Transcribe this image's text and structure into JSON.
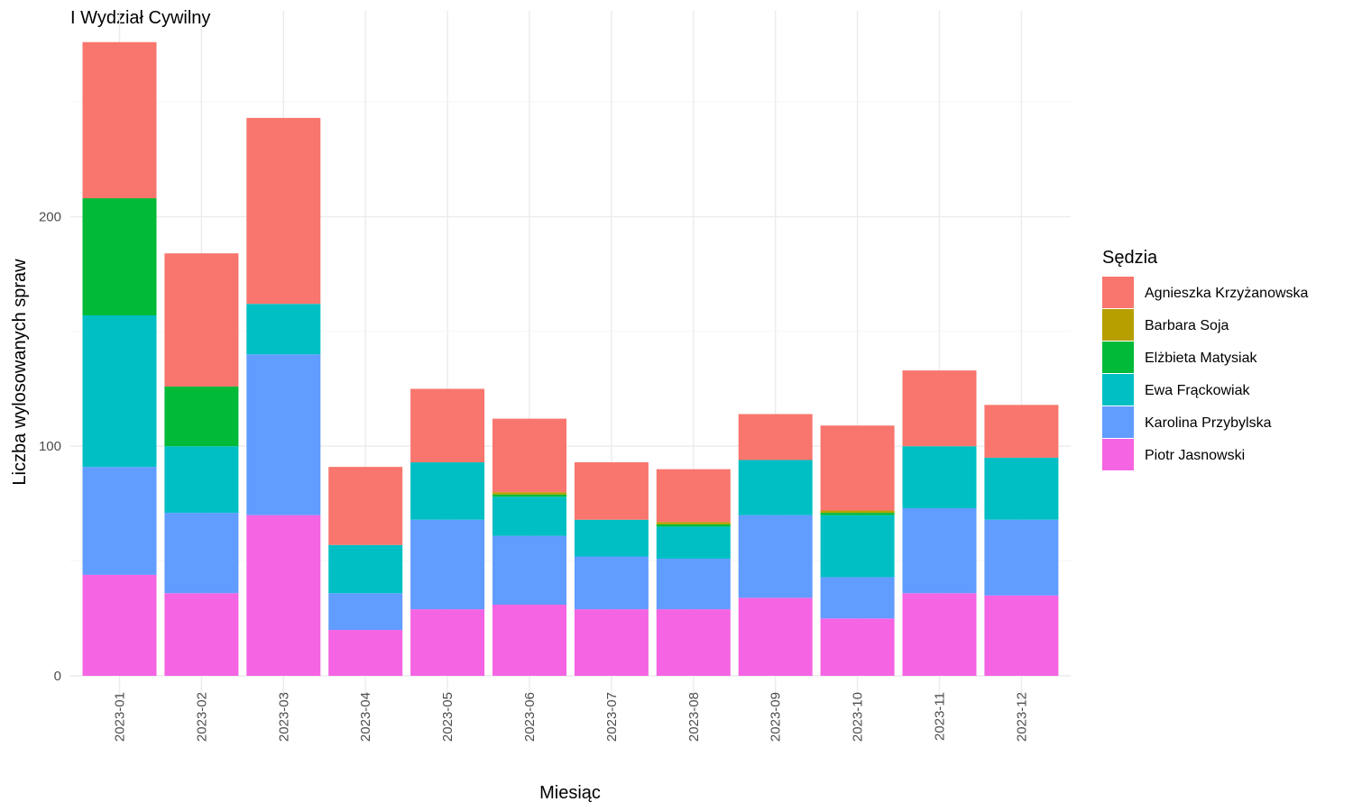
{
  "chart_data": {
    "type": "bar",
    "stacked": true,
    "title": "I Wydział Cywilny",
    "xlabel": "Miesiąc",
    "ylabel": "Liczba wylosowanych spraw",
    "ylim": [
      0,
      280
    ],
    "yticks": [
      "0",
      "100",
      "200"
    ],
    "grid": true,
    "legend_title": "Sędzia",
    "legend_position": "right",
    "categories": [
      "2023-01",
      "2023-02",
      "2023-03",
      "2023-04",
      "2023-05",
      "2023-06",
      "2023-07",
      "2023-08",
      "2023-09",
      "2023-10",
      "2023-11",
      "2023-12"
    ],
    "series": [
      {
        "name": "Piotr Jasnowski",
        "color": "#F564E3",
        "values": [
          44,
          36,
          70,
          20,
          29,
          31,
          29,
          29,
          34,
          25,
          36,
          35
        ]
      },
      {
        "name": "Karolina Przybylska",
        "color": "#619CFF",
        "values": [
          47,
          35,
          70,
          16,
          39,
          30,
          23,
          22,
          36,
          18,
          37,
          33
        ]
      },
      {
        "name": "Ewa Frąckowiak",
        "color": "#00BFC4",
        "values": [
          66,
          29,
          22,
          21,
          25,
          17,
          16,
          14,
          24,
          27,
          27,
          27
        ]
      },
      {
        "name": "Elżbieta Matysiak",
        "color": "#00BA38",
        "values": [
          51,
          26,
          0,
          0,
          0,
          1,
          0,
          1,
          0,
          1,
          0,
          0
        ]
      },
      {
        "name": "Barbara Soja",
        "color": "#B79F00",
        "values": [
          0,
          0,
          0,
          0,
          0,
          1,
          0,
          1,
          0,
          1,
          0,
          0
        ]
      },
      {
        "name": "Agnieszka Krzyżanowska",
        "color": "#F8766D",
        "values": [
          68,
          58,
          81,
          34,
          32,
          32,
          25,
          23,
          20,
          37,
          33,
          23
        ]
      }
    ],
    "legend_order": [
      "Agnieszka Krzyżanowska",
      "Barbara Soja",
      "Elżbieta Matysiak",
      "Ewa Frąckowiak",
      "Karolina Przybylska",
      "Piotr Jasnowski"
    ]
  }
}
